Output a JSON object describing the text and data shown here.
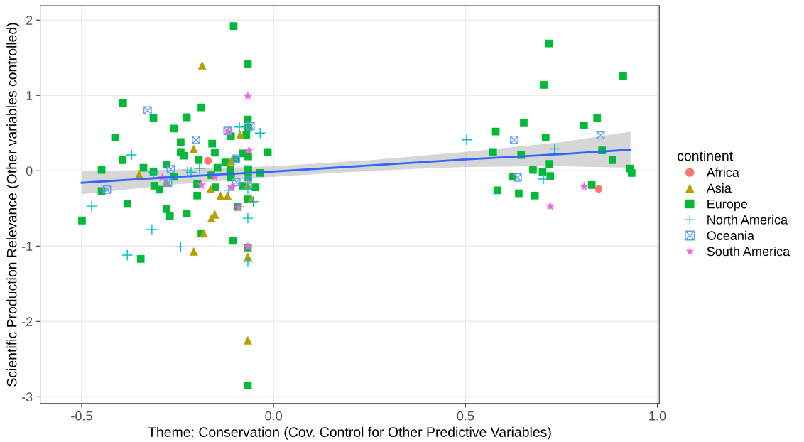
{
  "chart_data": {
    "type": "scatter",
    "xlabel": "Theme: Conservation (Cov. Control for Other Predictive Variables)",
    "ylabel": "Scientific Production Relevance (Other variables controlled)",
    "legend_title": "continent",
    "legend": "right",
    "grid": true,
    "xlim": [
      -0.608,
      1.005
    ],
    "ylim": [
      -3.09,
      2.19
    ],
    "xticks": [
      {
        "value": -0.5,
        "label": "-0.5"
      },
      {
        "value": 0,
        "label": "0.0"
      },
      {
        "value": 0.5,
        "label": "0.5"
      },
      {
        "value": 1,
        "label": "1.0"
      }
    ],
    "yticks": [
      {
        "value": -3,
        "label": "-3"
      },
      {
        "value": -2,
        "label": "-2"
      },
      {
        "value": -1,
        "label": "-1"
      },
      0,
      1,
      2
    ],
    "series": [
      {
        "name": "Africa",
        "color": "#f8766d",
        "marker": "circle",
        "x": [
          -0.171,
          0.847
        ],
        "values": [
          0.13,
          -0.24
        ]
      },
      {
        "name": "Asia",
        "color": "#b79f00",
        "marker": "triangle",
        "x": [
          -0.186,
          -0.087,
          -0.208,
          -0.35,
          -0.279,
          -0.111,
          -0.164,
          -0.138,
          -0.12,
          -0.067,
          -0.058,
          -0.153,
          -0.162,
          -0.182,
          -0.208,
          -0.067,
          -0.067
        ],
        "values": [
          1.4,
          0.48,
          0.29,
          -0.05,
          -0.16,
          0.13,
          -0.24,
          -0.33,
          -0.33,
          -0.19,
          -0.37,
          -0.58,
          -0.63,
          -0.83,
          -1.07,
          -1.14,
          -2.25
        ]
      },
      {
        "name": "Europe",
        "color": "#00ba38",
        "marker": "square",
        "x": [
          0.718,
          0.911,
          0.705,
          0.843,
          0.809,
          0.652,
          0.579,
          0.709,
          0.572,
          0.645,
          0.856,
          0.883,
          0.719,
          0.676,
          0.701,
          0.721,
          0.929,
          0.933,
          0.623,
          0.829,
          0.583,
          0.639,
          0.681,
          -0.392,
          -0.313,
          -0.26,
          -0.413,
          -0.393,
          -0.448,
          -0.339,
          -0.313,
          -0.279,
          -0.26,
          -0.311,
          -0.297,
          -0.448,
          -0.381,
          -0.279,
          -0.27,
          -0.499,
          -0.346,
          -0.104,
          -0.067,
          -0.188,
          -0.226,
          -0.067,
          -0.066,
          -0.071,
          -0.111,
          -0.16,
          -0.242,
          -0.015,
          -0.153,
          -0.08,
          -0.195,
          -0.066,
          -0.126,
          -0.097,
          -0.146,
          -0.113,
          -0.066,
          -0.035,
          -0.162,
          -0.066,
          -0.111,
          -0.199,
          -0.151,
          -0.047,
          -0.08,
          -0.199,
          -0.067,
          -0.226,
          -0.093,
          -0.188,
          -0.106,
          -0.067,
          -0.067,
          -0.242,
          -0.233
        ],
        "values": [
          1.69,
          1.26,
          1.14,
          0.7,
          0.6,
          0.63,
          0.52,
          0.44,
          0.25,
          0.21,
          0.27,
          0.14,
          0.09,
          0.01,
          -0.02,
          -0.07,
          0.03,
          -0.03,
          -0.08,
          -0.19,
          -0.26,
          -0.3,
          -0.33,
          0.9,
          0.7,
          0.56,
          0.44,
          0.14,
          0.01,
          0.04,
          -0.01,
          0.08,
          -0.08,
          -0.2,
          -0.25,
          -0.27,
          -0.44,
          -0.51,
          -0.6,
          -0.66,
          -1.17,
          1.92,
          1.42,
          0.84,
          0.71,
          0.68,
          0.57,
          0.47,
          0.46,
          0.36,
          0.38,
          0.25,
          0.24,
          0.23,
          0.14,
          0.19,
          0.11,
          0.15,
          0.04,
          0.02,
          0.02,
          -0.03,
          -0.06,
          -0.09,
          -0.09,
          -0.18,
          -0.22,
          -0.22,
          -0.2,
          -0.33,
          -0.38,
          -0.57,
          -0.48,
          -0.83,
          -0.93,
          -1.02,
          -2.85,
          0.25,
          0.2
        ]
      },
      {
        "name": "North America",
        "color": "#00bfc4",
        "marker": "cross",
        "x": [
          0.503,
          0.732,
          0.703,
          -0.37,
          -0.474,
          -0.317,
          -0.381,
          -0.242,
          -0.313,
          -0.224,
          -0.215,
          -0.193,
          -0.089,
          -0.035,
          -0.067,
          -0.067,
          -0.053,
          -0.067,
          -0.117
        ],
        "values": [
          0.41,
          0.29,
          -0.11,
          0.21,
          -0.47,
          -0.78,
          -1.12,
          -1.01,
          -0.02,
          0.0,
          -0.02,
          0.03,
          0.58,
          0.5,
          -0.63,
          -1.21,
          -0.41,
          -0.24,
          -0.26
        ]
      },
      {
        "name": "Oceania",
        "color": "#619cff",
        "x": [
          0.627,
          0.852,
          0.636,
          -0.328,
          -0.202,
          -0.434,
          -0.268,
          -0.275,
          -0.12,
          -0.06,
          -0.098,
          -0.097,
          -0.067
        ],
        "values": [
          0.41,
          0.47,
          -0.09,
          0.8,
          0.41,
          -0.25,
          0.02,
          -0.16,
          0.53,
          0.59,
          0.16,
          -0.15,
          -0.12
        ]
      },
      {
        "name": "South America",
        "color": "#f564e3",
        "marker": "star",
        "x": [
          0.809,
          0.721,
          -0.067,
          -0.064,
          -0.118,
          -0.188,
          -0.109,
          -0.091,
          -0.067,
          -0.153,
          -0.29
        ],
        "values": [
          -0.21,
          -0.47,
          0.99,
          0.27,
          0.52,
          -0.19,
          -0.22,
          -0.49,
          -1.01,
          -0.08,
          -0.09
        ]
      },
      {
        "type": "line",
        "color": "#3366ff",
        "x": [
          -0.5,
          -0.25,
          0,
          0.25,
          0.5,
          0.75,
          0.93
        ],
        "values": [
          -0.16,
          -0.08,
          -0.01,
          0.07,
          0.15,
          0.22,
          0.28
        ],
        "lower": [
          -0.31,
          -0.18,
          -0.08,
          0.0,
          0.05,
          0.06,
          0.04
        ],
        "upper": [
          -0.01,
          0.02,
          0.06,
          0.14,
          0.25,
          0.38,
          0.52
        ]
      }
    ]
  }
}
